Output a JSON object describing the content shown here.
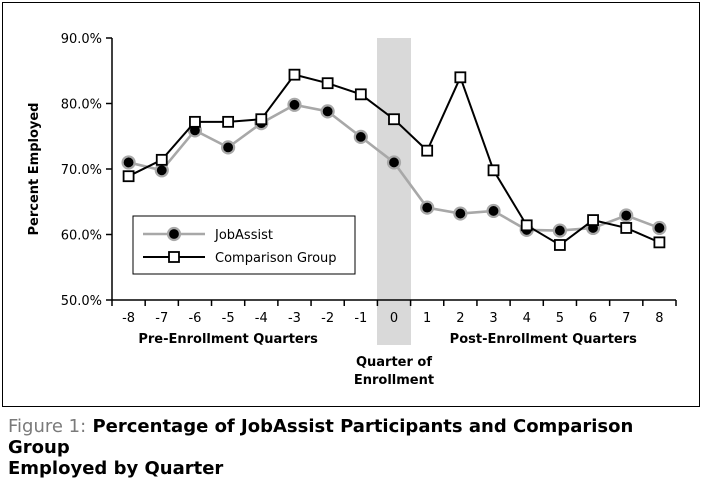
{
  "chart_data": {
    "type": "line",
    "x": [
      -8,
      -7,
      -6,
      -5,
      -4,
      -3,
      -2,
      -1,
      0,
      1,
      2,
      3,
      4,
      5,
      6,
      7,
      8
    ],
    "series": [
      {
        "name": "JobAssist",
        "color": "#a8a8a8",
        "marker": "filled-circle",
        "values": [
          71.0,
          69.8,
          75.9,
          73.3,
          77.0,
          79.8,
          78.8,
          74.9,
          71.0,
          64.1,
          63.2,
          63.6,
          60.7,
          60.6,
          61.0,
          62.9,
          61.0
        ]
      },
      {
        "name": "Comparison Group",
        "color": "#000000",
        "marker": "open-square",
        "values": [
          68.9,
          71.4,
          77.2,
          77.2,
          77.6,
          84.4,
          83.1,
          81.4,
          77.6,
          72.8,
          84.0,
          69.8,
          61.4,
          58.4,
          62.2,
          61.0,
          58.8
        ]
      }
    ],
    "ylabel": "Percent Employed",
    "ylim": [
      50,
      90
    ],
    "yticks": [
      "50.0%",
      "60.0%",
      "70.0%",
      "80.0%",
      "90.0%"
    ],
    "xticks": [
      "-8",
      "-7",
      "-6",
      "-5",
      "-4",
      "-3",
      "-2",
      "-1",
      "0",
      "1",
      "2",
      "3",
      "4",
      "5",
      "6",
      "7",
      "8"
    ],
    "group_labels": {
      "pre": "Pre-Enrollment Quarters",
      "post": "Post-Enrollment Quarters",
      "enrollment_line1": "Quarter of",
      "enrollment_line2": "Enrollment"
    },
    "highlight_quarter": 0,
    "highlight_color": "#d9d9d9",
    "legend_position": "lower-left"
  },
  "caption": {
    "prefix": "Figure 1:",
    "line1": "Percentage of JobAssist Participants and Comparison Group",
    "line2": "Employed by Quarter"
  }
}
